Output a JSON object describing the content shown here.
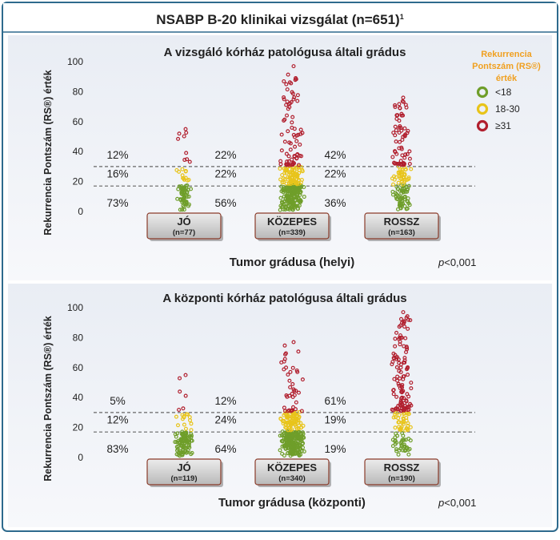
{
  "title": "NSABP B-20 klinikai vizsgálat (n=651)",
  "title_superscript": "1",
  "legend": {
    "title_lines": [
      "Rekurrencia",
      "Pontszám (RS®)",
      "érték"
    ],
    "items": [
      {
        "label": "<18",
        "color": "#6f9e2a"
      },
      {
        "label": "18-30",
        "color": "#e8c41a"
      },
      {
        "label": "≥31",
        "color": "#b11f2e"
      }
    ]
  },
  "colors": {
    "low": "#6f9e2a",
    "mid": "#e8c41a",
    "high": "#b11f2e",
    "frame": "#2e6a8d",
    "panel_bg": "#eef1f6",
    "legend_title": "#f0a020"
  },
  "chart_data": [
    {
      "type": "scatter",
      "title": "A vizsgáló kórház patológusa általi grádus",
      "ylabel": "Rekurrencia Pontszám (RS®) érték",
      "xlabel": "Tumor grádusa (helyi)",
      "pvalue_prefix": "p",
      "pvalue_rest": "<0,001",
      "ylim": [
        0,
        100
      ],
      "yticks": [
        "0",
        "20",
        "40",
        "60",
        "80",
        "100"
      ],
      "cutoffs": [
        18,
        31
      ],
      "groups": [
        {
          "name": "JÓ",
          "n_label": "(n=77)",
          "n": 77,
          "pct_high": "12%",
          "pct_mid": "16%",
          "pct_low": "73%",
          "max": 55
        },
        {
          "name": "KÖZEPES",
          "n_label": "(n=339)",
          "n": 339,
          "pct_high": "22%",
          "pct_mid": "22%",
          "pct_low": "56%",
          "max": 97
        },
        {
          "name": "ROSSZ",
          "n_label": "(n=163)",
          "n": 163,
          "pct_high": "42%",
          "pct_mid": "22%",
          "pct_low": "36%",
          "max": 76
        }
      ]
    },
    {
      "type": "scatter",
      "title": "A központi kórház patológusa általi grádus",
      "ylabel": "Rekurrencia Pontszám (RS®) érték",
      "xlabel": "Tumor grádusa (központi)",
      "pvalue_prefix": "p",
      "pvalue_rest": "<0,001",
      "ylim": [
        0,
        100
      ],
      "yticks": [
        "0",
        "20",
        "40",
        "60",
        "80",
        "100"
      ],
      "cutoffs": [
        18,
        31
      ],
      "groups": [
        {
          "name": "JÓ",
          "n_label": "(n=119)",
          "n": 119,
          "pct_high": "5%",
          "pct_mid": "12%",
          "pct_low": "83%",
          "max": 55
        },
        {
          "name": "KÖZEPES",
          "n_label": "(n=340)",
          "n": 340,
          "pct_high": "12%",
          "pct_mid": "24%",
          "pct_low": "64%",
          "max": 77
        },
        {
          "name": "ROSSZ",
          "n_label": "(n=190)",
          "n": 190,
          "pct_high": "61%",
          "pct_mid": "19%",
          "pct_low": "19%",
          "max": 97
        }
      ]
    }
  ]
}
